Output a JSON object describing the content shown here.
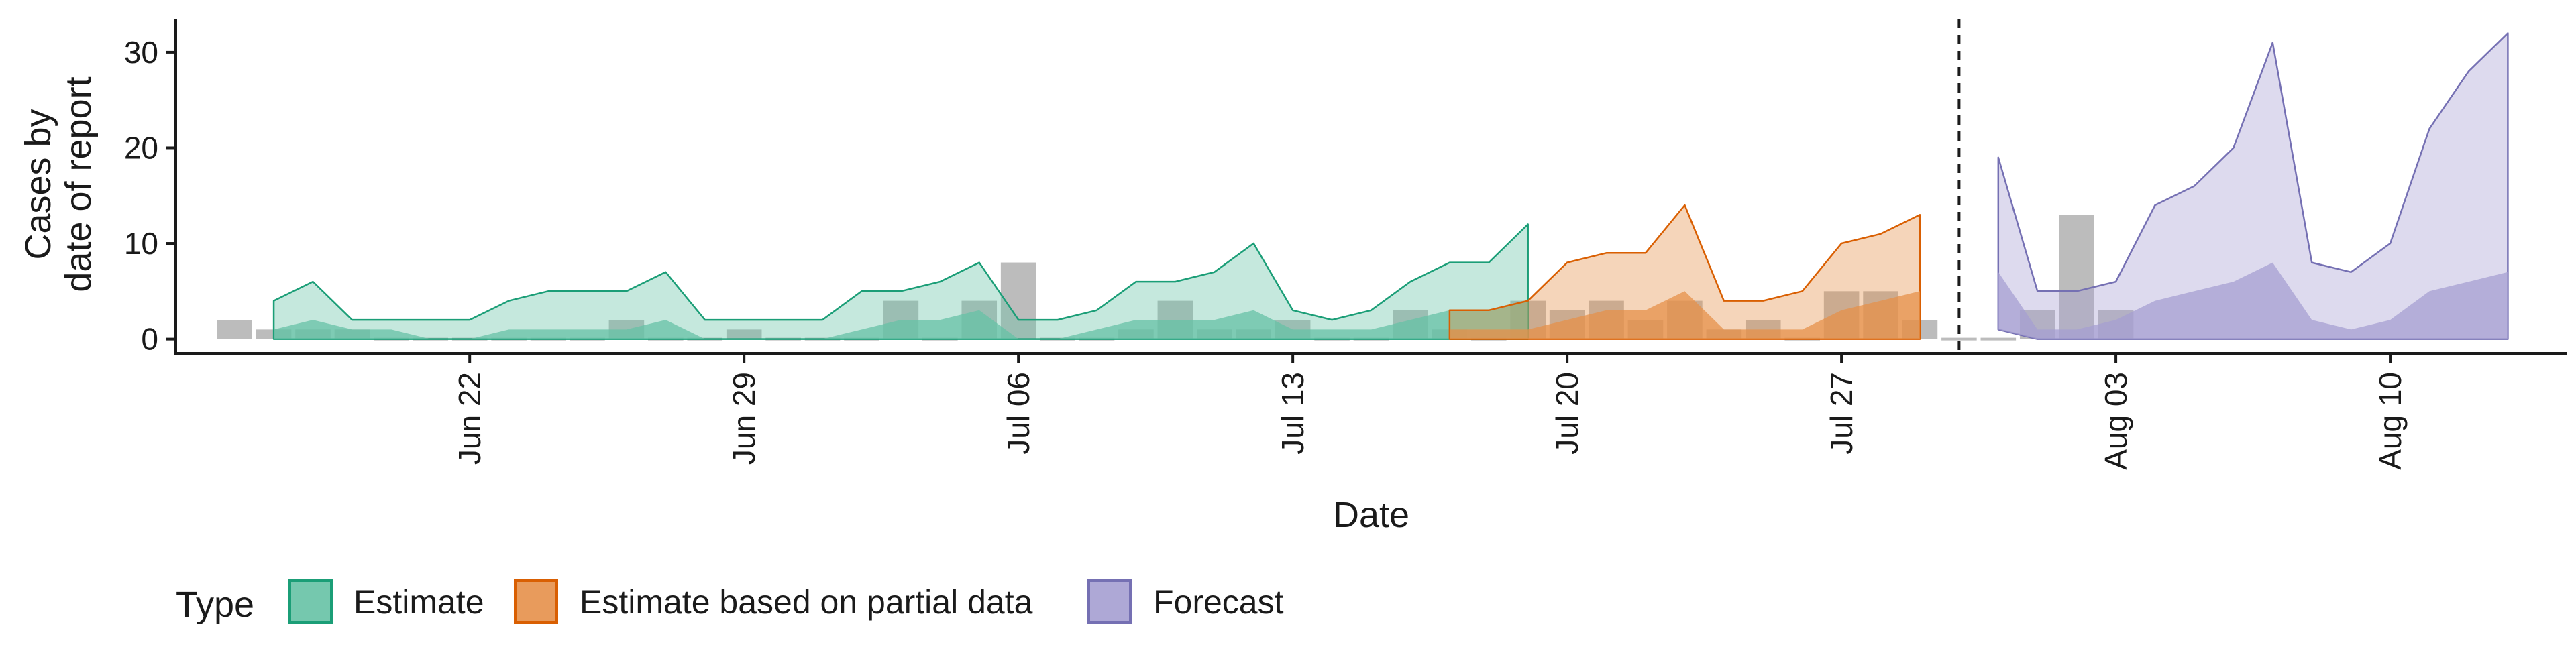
{
  "chart_data": {
    "type": "area",
    "xlabel": "Date",
    "ylabel": [
      "Cases by",
      "date of report"
    ],
    "ylim": [
      -1.5,
      33.5
    ],
    "yticks": [
      0,
      10,
      20,
      30
    ],
    "xlim_days": [
      -4.5,
      56.5
    ],
    "x_ticks": [
      {
        "day": 3,
        "label": "Jun 22"
      },
      {
        "day": 10,
        "label": "Jun 29"
      },
      {
        "day": 17,
        "label": "Jul 06"
      },
      {
        "day": 24,
        "label": "Jul 13"
      },
      {
        "day": 31,
        "label": "Jul 20"
      },
      {
        "day": 38,
        "label": "Jul 27"
      },
      {
        "day": 45,
        "label": "Aug 03"
      },
      {
        "day": 52,
        "label": "Aug 10"
      }
    ],
    "vline_day": 41,
    "legend": {
      "title": "Type",
      "position": "bottom",
      "items": [
        "Estimate",
        "Estimate based on partial data",
        "Forecast"
      ]
    },
    "colors": {
      "estimate_fill": "#66c2a5",
      "estimate_line": "#1b9e77",
      "partial_fill": "#e5904a",
      "partial_line": "#d95f02",
      "forecast_fill": "#a59fd1",
      "forecast_line": "#7570b3",
      "bar": "#a6a6a6"
    },
    "observed_cases": {
      "start_day": -3,
      "values": [
        2,
        1,
        1,
        1,
        0,
        0,
        0,
        0,
        0,
        0,
        2,
        0,
        0,
        1,
        0,
        0,
        0,
        4,
        0,
        4,
        8,
        0,
        0,
        1,
        4,
        1,
        1,
        2,
        0,
        0,
        3,
        1,
        0,
        4,
        3,
        4,
        2,
        4,
        1,
        2,
        0,
        5,
        5,
        2,
        0,
        0,
        3,
        13,
        3
      ]
    },
    "series": [
      {
        "name": "Estimate",
        "start_day": -2,
        "upper_outer": [
          4,
          6,
          2,
          2,
          2,
          2,
          4,
          5,
          5,
          5,
          7,
          2,
          2,
          2,
          2,
          5,
          5,
          6,
          8,
          2,
          2,
          3,
          6,
          6,
          7,
          10,
          3,
          2,
          3,
          6,
          8,
          8,
          12
        ],
        "upper_inner": [
          1,
          2,
          1,
          1,
          0,
          0,
          1,
          1,
          1,
          1,
          2,
          0,
          0,
          0,
          0,
          1,
          2,
          2,
          3,
          0,
          0,
          1,
          2,
          2,
          2,
          3,
          1,
          1,
          1,
          2,
          3,
          3,
          4
        ],
        "lower": [
          0,
          0,
          0,
          0,
          0,
          0,
          0,
          0,
          0,
          0,
          0,
          0,
          0,
          0,
          0,
          0,
          0,
          0,
          0,
          0,
          0,
          0,
          0,
          0,
          0,
          0,
          0,
          0,
          0,
          0,
          0,
          0,
          0
        ]
      },
      {
        "name": "Estimate based on partial data",
        "start_day": 28,
        "upper_outer": [
          3,
          3,
          4,
          8,
          9,
          9,
          14,
          4,
          4,
          5,
          10,
          11,
          13
        ],
        "upper_inner": [
          1,
          1,
          1,
          2,
          3,
          3,
          5,
          1,
          1,
          1,
          3,
          4,
          5
        ],
        "lower": [
          0,
          0,
          0,
          0,
          0,
          0,
          0,
          0,
          0,
          0,
          0,
          0,
          0
        ]
      },
      {
        "name": "Forecast",
        "start_day": 42,
        "upper_outer": [
          19,
          5,
          5,
          6,
          14,
          16,
          20,
          31,
          8,
          7,
          10,
          22,
          28,
          32
        ],
        "upper_inner": [
          7,
          1,
          1,
          2,
          4,
          5,
          6,
          8,
          2,
          1,
          2,
          5,
          6,
          7
        ],
        "lower": [
          1,
          0,
          0,
          0,
          0,
          0,
          0,
          0,
          0,
          0,
          0,
          0,
          0,
          0
        ]
      }
    ]
  }
}
